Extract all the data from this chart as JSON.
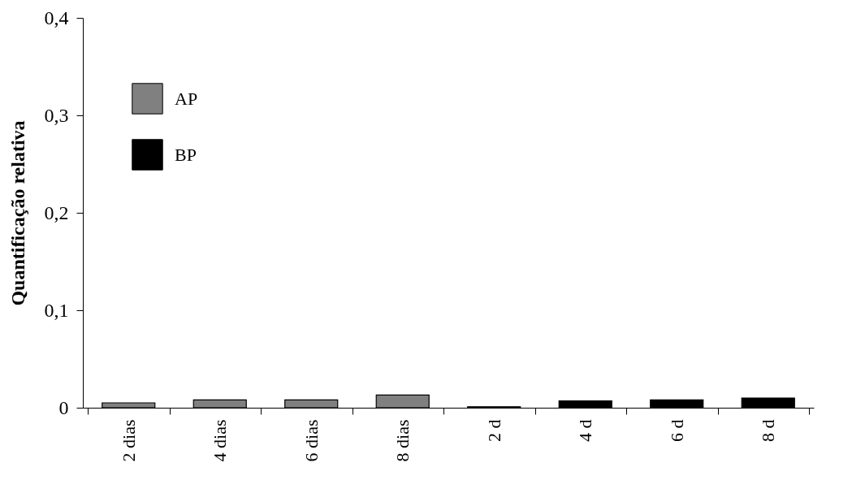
{
  "chart_data": {
    "type": "bar",
    "ylabel": "Quantificação relativa",
    "categories": [
      "2 dias",
      "4 dias",
      "6 dias",
      "8 dias",
      "2 d",
      "4 d",
      "6 d",
      "8 d"
    ],
    "series": [
      {
        "name": "AP",
        "color": "#808080",
        "values": [
          0.005,
          0.008,
          0.008,
          0.013,
          null,
          null,
          null,
          null
        ]
      },
      {
        "name": "BP",
        "color": "#000000",
        "values": [
          null,
          null,
          null,
          null,
          0.001,
          0.007,
          0.008,
          0.01
        ]
      }
    ],
    "ylim": [
      0,
      0.4
    ],
    "yticks": [
      0,
      {
        "value": 0.1,
        "label": "0,1"
      },
      {
        "value": 0.2,
        "label": "0,2"
      },
      {
        "value": 0.3,
        "label": "0,3"
      },
      {
        "value": 0.4,
        "label": "0,4"
      }
    ],
    "legend": "top left",
    "grid": false
  }
}
